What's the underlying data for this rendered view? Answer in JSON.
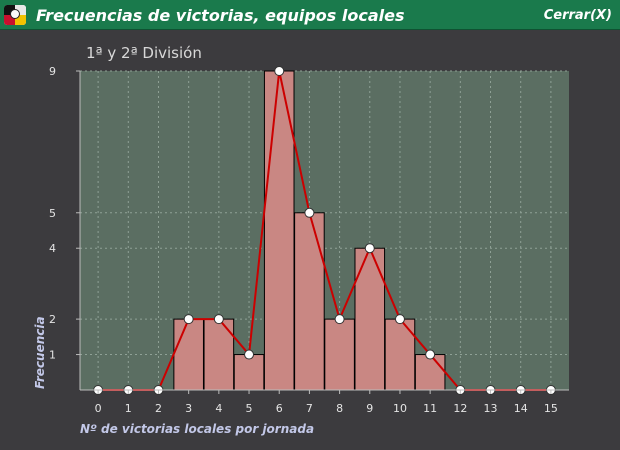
{
  "window": {
    "title": "Frecuencias de victorias, equipos locales",
    "close_label": "Cerrar(X)",
    "icon": "team-crest-icon"
  },
  "colors": {
    "titlebar": "#1a7a4c",
    "background": "#3c3b3e",
    "plot_background": "#5b6e62",
    "bar_fill": "#c98783",
    "bar_edge": "#000000",
    "line": "#cc0000",
    "marker": "#ffffff"
  },
  "chart_data": {
    "type": "bar",
    "title": "1ª y 2ª División",
    "xlabel": "Nº de victorias locales por jornada",
    "ylabel": "Frecuencia",
    "x": [
      0,
      1,
      2,
      3,
      4,
      5,
      6,
      7,
      8,
      9,
      10,
      11,
      12,
      13,
      14,
      15
    ],
    "values": [
      0,
      0,
      0,
      2,
      2,
      1,
      9,
      5,
      2,
      4,
      2,
      1,
      0,
      0,
      0,
      0
    ],
    "y_ticks": [
      1,
      2,
      4,
      5,
      9
    ],
    "xlim": [
      -0.6,
      15.6
    ],
    "ylim": [
      0,
      9
    ],
    "grid": true,
    "overlay": "line with circle markers connecting the same values"
  }
}
